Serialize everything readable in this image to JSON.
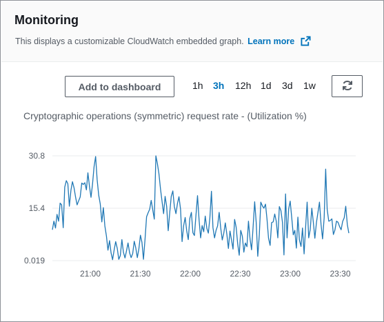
{
  "panel": {
    "title": "Monitoring",
    "description": "This displays a customizable CloudWatch embedded graph.",
    "learn_more_label": "Learn more",
    "learn_more_icon": "external-link-icon"
  },
  "toolbar": {
    "add_to_dashboard_label": "Add to dashboard",
    "ranges": [
      {
        "label": "1h",
        "active": false
      },
      {
        "label": "3h",
        "active": true
      },
      {
        "label": "12h",
        "active": false
      },
      {
        "label": "1d",
        "active": false
      },
      {
        "label": "3d",
        "active": false
      },
      {
        "label": "1w",
        "active": false
      }
    ],
    "refresh_icon": "refresh-icon"
  },
  "colors": {
    "accent": "#0073bb",
    "series": "#1f77b4",
    "grid": "#e9ebed",
    "text_secondary": "#545b64"
  },
  "chart_data": {
    "type": "line",
    "title": "Cryptographic operations (symmetric) request rate - (Utilization %)",
    "xlabel": "",
    "ylabel": "",
    "y_ticks": [
      "0.019",
      "15.4",
      "30.8"
    ],
    "ylim": [
      0.019,
      30.8
    ],
    "x_ticks": [
      "21:00",
      "21:30",
      "22:00",
      "22:30",
      "23:00",
      "23:30"
    ],
    "x_range": [
      "20:38",
      "23:36"
    ],
    "grid": true,
    "legend": "none",
    "series": [
      {
        "values": [
          9.1,
          11.6,
          9.6,
          13.6,
          11.6,
          16.9,
          16.4,
          9.7,
          21.6,
          23.5,
          22.6,
          16.0,
          20.7,
          23.2,
          21.4,
          18.7,
          16.4,
          17.6,
          18.7,
          22.8,
          22.4,
          22.9,
          20.8,
          25.8,
          21.8,
          18.6,
          22.5,
          27.7,
          30.6,
          23.8,
          19.2,
          16.7,
          11.4,
          15.6,
          10.2,
          7.2,
          3.1,
          5.9,
          2.3,
          0.3,
          3.2,
          5.6,
          3.6,
          0.4,
          1.5,
          6.2,
          2.5,
          0.8,
          2.9,
          5.2,
          2.3,
          0.9,
          2.1,
          5.7,
          3.8,
          0.9,
          3.4,
          7.5,
          5.4,
          0.4,
          6.4,
          12.9,
          14.1,
          15.1,
          17.7,
          14.9,
          12.2,
          30.8,
          28.5,
          25.6,
          21.1,
          17.5,
          13.8,
          18.9,
          16.0,
          8.8,
          14.1,
          18.9,
          20.5,
          15.9,
          13.8,
          16.8,
          18.8,
          15.1,
          5.6,
          10.3,
          12.7,
          8.8,
          6.2,
          12.4,
          14.2,
          8.2,
          7.4,
          13.5,
          19.1,
          11.9,
          6.7,
          10.3,
          8.5,
          13.1,
          9.5,
          8.1,
          12.5,
          20.4,
          9.7,
          6.7,
          8.9,
          10.2,
          14.2,
          9.7,
          6.1,
          8.1,
          11.1,
          7.7,
          3.6,
          8.7,
          6.1,
          3.4,
          12.1,
          9.9,
          4.9,
          1.6,
          8.9,
          7.2,
          2.5,
          5.2,
          4.1,
          11.6,
          6.4,
          3.2,
          9.8,
          17.3,
          11.3,
          1.3,
          7.5,
          17.2,
          16.1,
          15.4,
          16.6,
          12.2,
          6.6,
          4.5,
          11.2,
          11.4,
          13.7,
          11.6,
          6.7,
          15.9,
          14.7,
          11.3,
          1.7,
          19.6,
          6.7,
          15.2,
          17.5,
          12.8,
          7.6,
          8.9,
          3.7,
          12.8,
          6.1,
          4.2,
          9.6,
          2.0,
          9.8,
          17.2,
          6.7,
          9.2,
          15.4,
          11.3,
          6.6,
          11.2,
          14.2,
          17.2,
          10.6,
          6.4,
          12.6,
          26.9,
          15.0,
          11.6,
          11.8,
          12.3,
          7.7,
          9.0,
          11.6,
          11.3,
          10.0,
          9.1,
          11.5,
          12.6,
          16.0,
          10.6,
          8.1
        ]
      }
    ]
  }
}
